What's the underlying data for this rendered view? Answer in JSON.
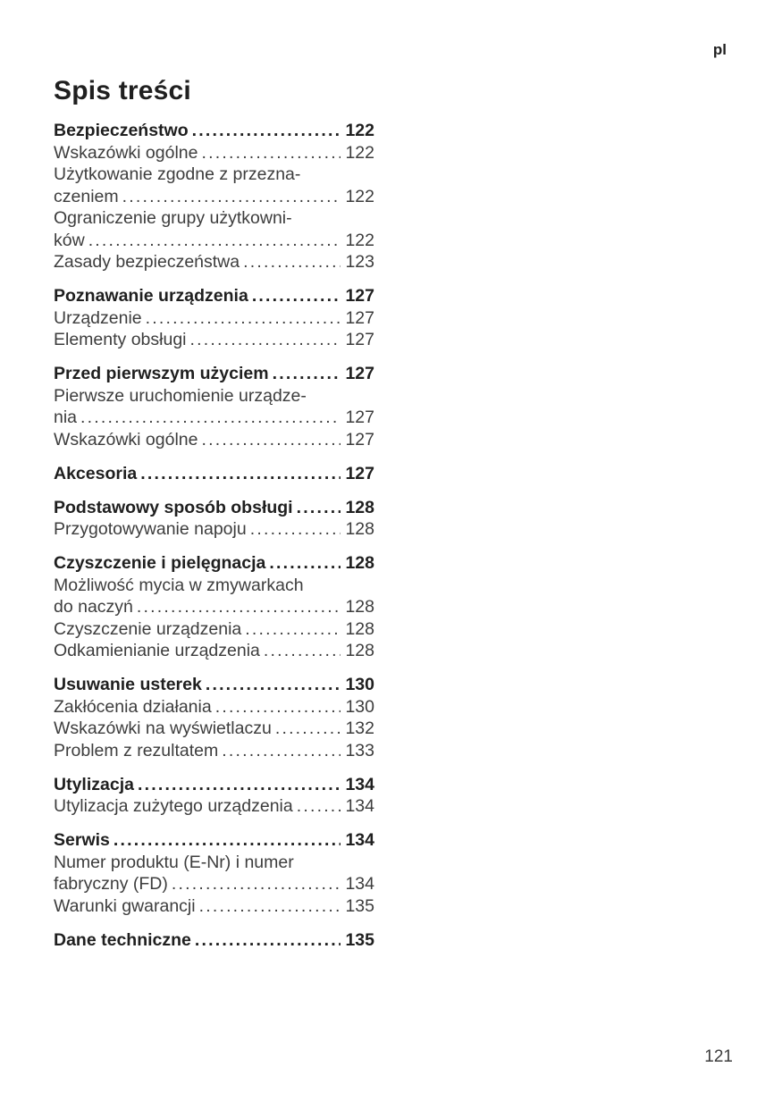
{
  "page": {
    "lang_label": "pl",
    "title": "Spis treści",
    "footer_page_number": "121"
  },
  "colors": {
    "background": "#ffffff",
    "heading_text": "#1f1f1f",
    "body_text": "#3d3d3d"
  },
  "toc": {
    "groups": [
      {
        "entries": [
          {
            "bold": true,
            "lines": [
              "Bezpieczeństwo"
            ],
            "page": "122"
          },
          {
            "bold": false,
            "lines": [
              "Wskazówki ogólne"
            ],
            "page": "122"
          },
          {
            "bold": false,
            "lines": [
              "Użytkowanie zgodne z przezna-",
              "czeniem"
            ],
            "page": "122"
          },
          {
            "bold": false,
            "lines": [
              "Ograniczenie grupy użytkowni-",
              "ków"
            ],
            "page": "122"
          },
          {
            "bold": false,
            "lines": [
              "Zasady bezpieczeństwa"
            ],
            "page": "123"
          }
        ]
      },
      {
        "entries": [
          {
            "bold": true,
            "lines": [
              "Poznawanie urządzenia"
            ],
            "page": "127"
          },
          {
            "bold": false,
            "lines": [
              "Urządzenie"
            ],
            "page": "127"
          },
          {
            "bold": false,
            "lines": [
              "Elementy obsługi"
            ],
            "page": "127"
          }
        ]
      },
      {
        "entries": [
          {
            "bold": true,
            "lines": [
              "Przed pierwszym użyciem"
            ],
            "page": "127"
          },
          {
            "bold": false,
            "lines": [
              "Pierwsze uruchomienie urządze-",
              "nia"
            ],
            "page": "127"
          },
          {
            "bold": false,
            "lines": [
              "Wskazówki ogólne"
            ],
            "page": "127"
          }
        ]
      },
      {
        "entries": [
          {
            "bold": true,
            "lines": [
              "Akcesoria"
            ],
            "page": "127"
          }
        ]
      },
      {
        "entries": [
          {
            "bold": true,
            "lines": [
              "Podstawowy sposób obsługi"
            ],
            "page": "128"
          },
          {
            "bold": false,
            "lines": [
              "Przygotowywanie napoju"
            ],
            "page": "128"
          }
        ]
      },
      {
        "entries": [
          {
            "bold": true,
            "lines": [
              "Czyszczenie i pielęgnacja"
            ],
            "page": "128"
          },
          {
            "bold": false,
            "lines": [
              "Możliwość mycia w zmywarkach",
              "do naczyń"
            ],
            "page": "128"
          },
          {
            "bold": false,
            "lines": [
              "Czyszczenie urządzenia"
            ],
            "page": "128"
          },
          {
            "bold": false,
            "lines": [
              "Odkamienianie urządzenia"
            ],
            "page": "128"
          }
        ]
      },
      {
        "entries": [
          {
            "bold": true,
            "lines": [
              "Usuwanie usterek"
            ],
            "page": "130"
          },
          {
            "bold": false,
            "lines": [
              "Zakłócenia działania"
            ],
            "page": "130"
          },
          {
            "bold": false,
            "lines": [
              "Wskazówki na wyświetlaczu"
            ],
            "page": "132"
          },
          {
            "bold": false,
            "lines": [
              "Problem z rezultatem"
            ],
            "page": "133"
          }
        ]
      },
      {
        "entries": [
          {
            "bold": true,
            "lines": [
              "Utylizacja"
            ],
            "page": "134"
          },
          {
            "bold": false,
            "lines": [
              "Utylizacja zużytego urządzenia"
            ],
            "page": "134"
          }
        ]
      },
      {
        "entries": [
          {
            "bold": true,
            "lines": [
              "Serwis"
            ],
            "page": "134"
          },
          {
            "bold": false,
            "lines": [
              "Numer produktu (E-Nr) i numer",
              "fabryczny (FD)"
            ],
            "page": "134"
          },
          {
            "bold": false,
            "lines": [
              "Warunki gwarancji"
            ],
            "page": "135"
          }
        ]
      },
      {
        "entries": [
          {
            "bold": true,
            "lines": [
              "Dane techniczne"
            ],
            "page": "135"
          }
        ]
      }
    ]
  }
}
